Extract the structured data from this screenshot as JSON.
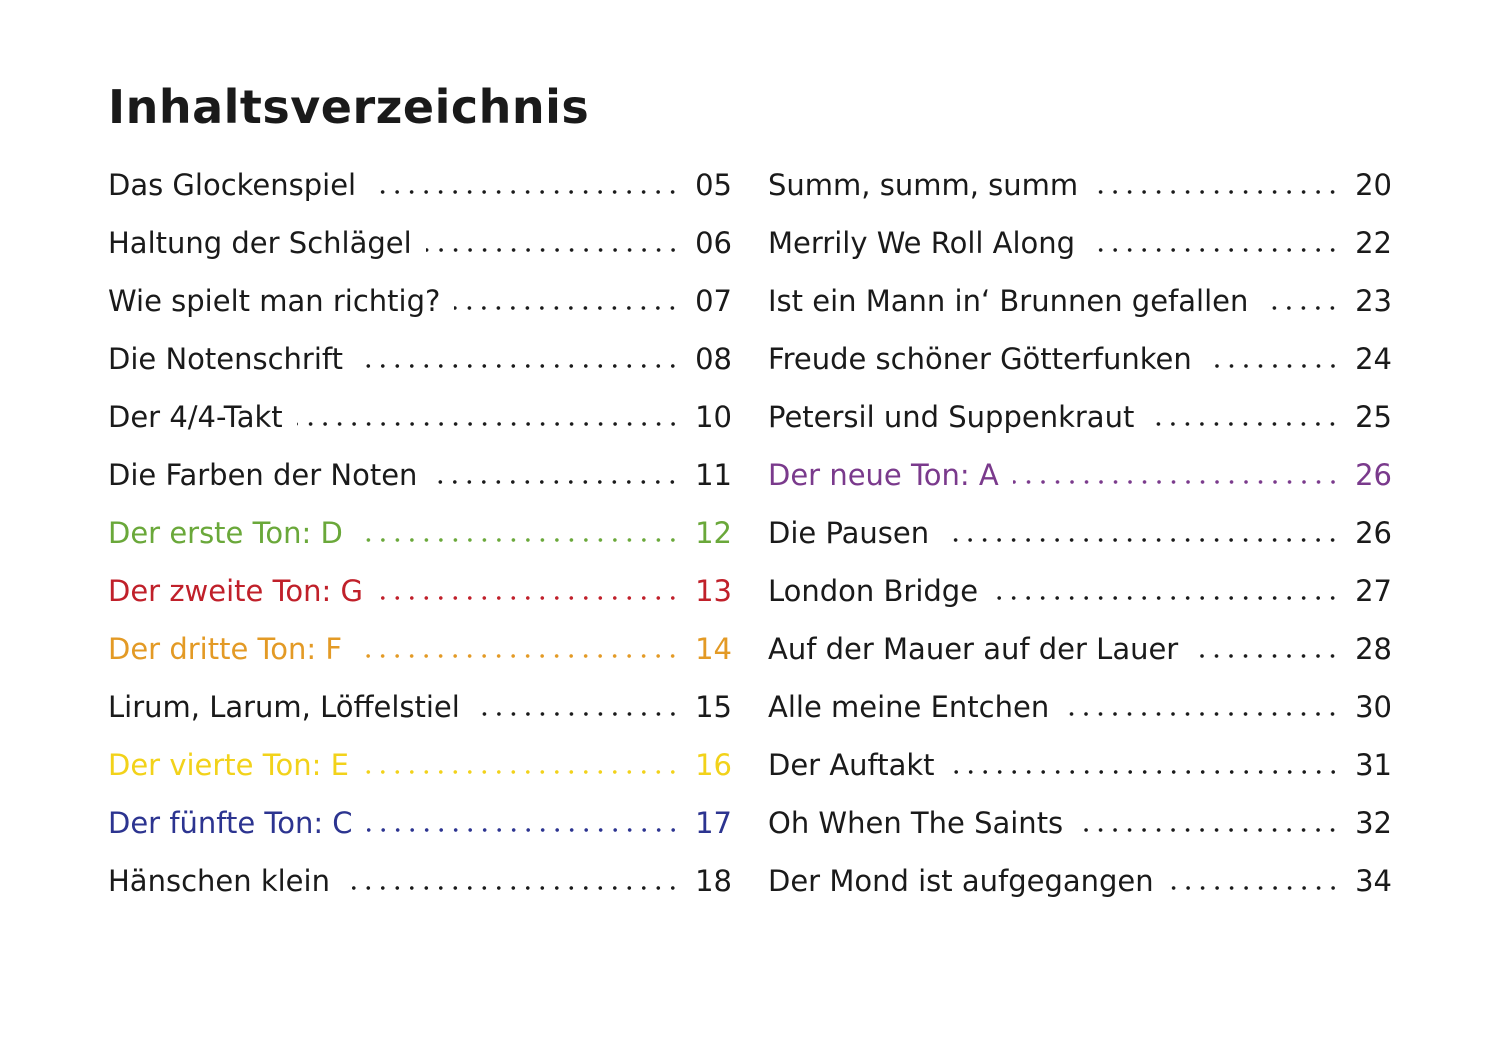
{
  "heading": "Inhaltsverzeichnis",
  "colors": {
    "black": "#1a1a1a",
    "green": "#6aa83a",
    "red": "#c0202a",
    "orange": "#e39a25",
    "yellow": "#f2d21a",
    "blue": "#2c3490",
    "purple": "#7a3a8c"
  },
  "left": [
    {
      "title": "Das Glockenspiel",
      "page": "05",
      "color": "black"
    },
    {
      "title": "Haltung der Schlägel",
      "page": "06",
      "color": "black"
    },
    {
      "title": "Wie spielt man richtig?",
      "page": "07",
      "color": "black"
    },
    {
      "title": "Die Notenschrift",
      "page": "08",
      "color": "black"
    },
    {
      "title": "Der 4/4-Takt",
      "page": "10",
      "color": "black"
    },
    {
      "title": "Die Farben der Noten",
      "page": "11",
      "color": "black"
    },
    {
      "title": "Der erste Ton: D",
      "page": "12",
      "color": "green"
    },
    {
      "title": "Der zweite Ton: G",
      "page": "13",
      "color": "red"
    },
    {
      "title": "Der dritte Ton: F",
      "page": "14",
      "color": "orange"
    },
    {
      "title": "Lirum, Larum, Löffelstiel",
      "page": "15",
      "color": "black"
    },
    {
      "title": "Der vierte Ton: E",
      "page": "16",
      "color": "yellow"
    },
    {
      "title": "Der fünfte Ton: C",
      "page": "17",
      "color": "blue"
    },
    {
      "title": "Hänschen klein",
      "page": "18",
      "color": "black"
    }
  ],
  "right": [
    {
      "title": "Summ, summ, summ",
      "page": "20",
      "color": "black"
    },
    {
      "title": "Merrily We Roll Along",
      "page": "22",
      "color": "black"
    },
    {
      "title": "Ist ein Mann in‘ Brunnen gefallen",
      "page": "23",
      "color": "black"
    },
    {
      "title": "Freude schöner Götterfunken",
      "page": "24",
      "color": "black"
    },
    {
      "title": "Petersil und Suppenkraut",
      "page": "25",
      "color": "black"
    },
    {
      "title": "Der neue Ton: A",
      "page": "26",
      "color": "purple"
    },
    {
      "title": "Die Pausen",
      "page": "26",
      "color": "black"
    },
    {
      "title": "London Bridge",
      "page": "27",
      "color": "black"
    },
    {
      "title": "Auf der Mauer auf der Lauer",
      "page": "28",
      "color": "black"
    },
    {
      "title": "Alle meine Entchen",
      "page": "30",
      "color": "black"
    },
    {
      "title": "Der Auftakt",
      "page": "31",
      "color": "black"
    },
    {
      "title": "Oh When The Saints",
      "page": "32",
      "color": "black"
    },
    {
      "title": "Der Mond ist aufgegangen",
      "page": "34",
      "color": "black"
    }
  ]
}
